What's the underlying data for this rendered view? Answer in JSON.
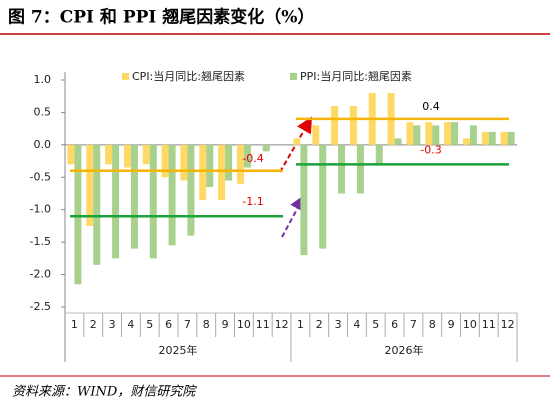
{
  "chart_data": {
    "type": "bar",
    "title": "图 7：CPI 和 PPI 翘尾因素变化（%）",
    "source": "资料来源：WIND，财信研究院",
    "category_groups": [
      {
        "name": "2025年",
        "categories": [
          "1",
          "2",
          "3",
          "4",
          "5",
          "6",
          "7",
          "8",
          "9",
          "10",
          "11",
          "12"
        ]
      },
      {
        "name": "2026年",
        "categories": [
          "1",
          "2",
          "3",
          "4",
          "5",
          "6",
          "7",
          "8",
          "9",
          "10",
          "11",
          "12"
        ]
      }
    ],
    "series": [
      {
        "name": "CPI:当月同比:翘尾因素",
        "color": "#ffd966",
        "average_color": "#f5b400",
        "values": [
          -0.3,
          -1.25,
          -0.3,
          -0.35,
          -0.3,
          -0.5,
          -0.55,
          -0.85,
          -0.85,
          -0.6,
          0,
          0,
          0.1,
          0.3,
          0.6,
          0.6,
          0.8,
          0.8,
          0.35,
          0.35,
          0.35,
          0.1,
          0.2,
          0.2
        ],
        "averages": [
          -0.4,
          0.4
        ],
        "average_label_colors": [
          "#e00000",
          "#000000"
        ]
      },
      {
        "name": "PPI:当月同比:翘尾因素",
        "color": "#a9d18e",
        "average_color": "#1aa33a",
        "values": [
          -2.15,
          -1.85,
          -1.75,
          -1.6,
          -1.75,
          -1.55,
          -1.4,
          -0.65,
          -0.55,
          -0.35,
          -0.1,
          0,
          -1.7,
          -1.6,
          -0.75,
          -0.75,
          -0.3,
          0.1,
          0.3,
          0.3,
          0.35,
          0.3,
          0.2,
          0.2
        ],
        "averages": [
          -1.1,
          -0.3
        ],
        "average_label_colors": [
          "#e00000",
          "#e00000"
        ]
      }
    ],
    "ylim": [
      -2.5,
      1.0
    ],
    "yticks": [
      {
        "value": 1,
        "label": "1.0"
      },
      {
        "value": 0.5,
        "label": "0.5"
      },
      {
        "value": 0,
        "label": "0.0"
      },
      {
        "value": -0.5,
        "label": "-0.5"
      },
      {
        "value": -1,
        "label": "-1.0"
      },
      {
        "value": -1.5,
        "label": "-1.5"
      },
      {
        "value": -2,
        "label": "-2.0"
      },
      {
        "value": -2.5,
        "label": "-2.5"
      }
    ]
  }
}
